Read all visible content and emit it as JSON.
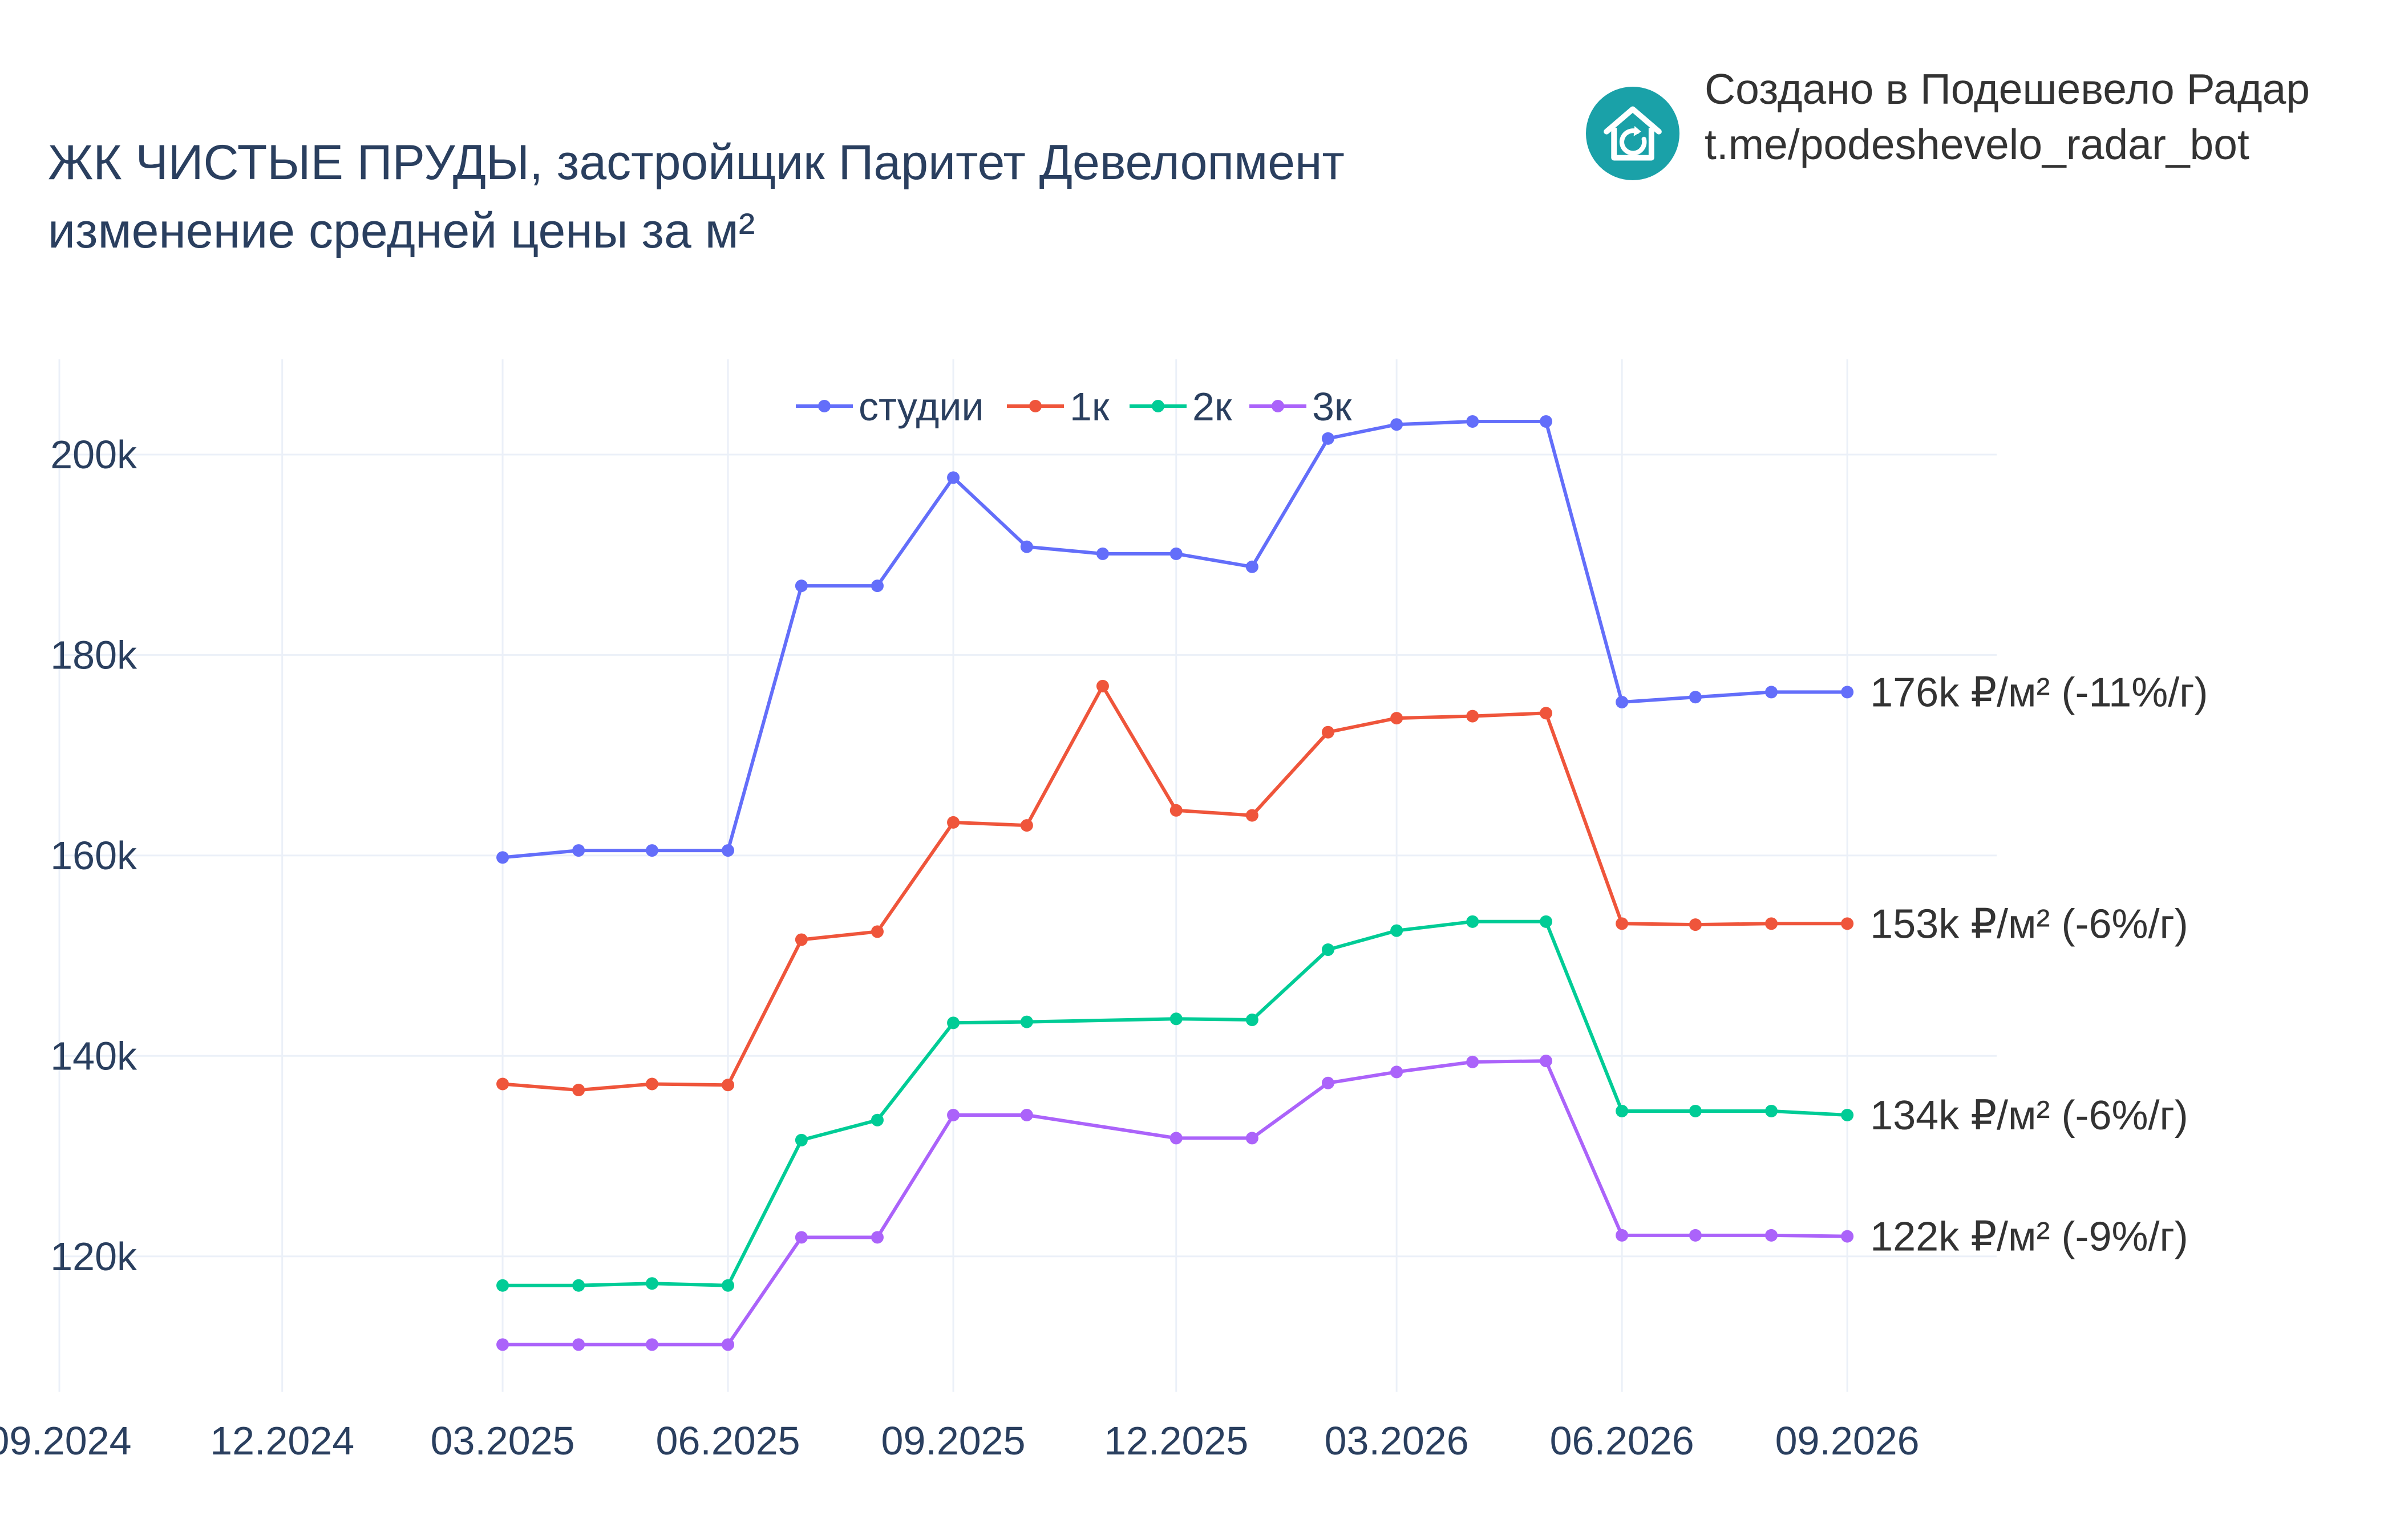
{
  "header": {
    "title_line1": "ЖК ЧИСТЫЕ ПРУДЫ, застройщик Паритет Девелопмент",
    "title_line2": "изменение средней цены за м²"
  },
  "brand": {
    "line1": "Создано в Подешевело Радар",
    "line2": "t.me/podeshevelo_radar_bot",
    "logo_icon": "house-refresh-icon",
    "logo_color": "#1aa1a8"
  },
  "chart_data": {
    "type": "line",
    "x_tick_labels": [
      "09.2024",
      "12.2024",
      "03.2025",
      "06.2025",
      "09.2025",
      "12.2025",
      "03.2026",
      "06.2026",
      "09.2026"
    ],
    "x_tick_dates": [
      "2024-09-01",
      "2024-12-01",
      "2025-03-01",
      "2025-06-01",
      "2025-09-01",
      "2025-12-01",
      "2026-03-01",
      "2026-06-01",
      "2026-09-01"
    ],
    "xlim": [
      "2024-09-01",
      "2026-11-01"
    ],
    "ylim": [
      106500,
      209500
    ],
    "y_ticks": [
      120000,
      140000,
      160000,
      180000,
      200000
    ],
    "y_tick_labels": [
      "120k",
      "140k",
      "160k",
      "180k",
      "200k"
    ],
    "grid": true,
    "legend_placement": "top-center",
    "series": [
      {
        "name": "студии",
        "color": "#636efa",
        "x": [
          "2025-03-01",
          "2025-04-01",
          "2025-05-01",
          "2025-06-01",
          "2025-07-01",
          "2025-08-01",
          "2025-09-01",
          "2025-10-01",
          "2025-11-01",
          "2025-12-01",
          "2026-01-01",
          "2026-02-01",
          "2026-03-01",
          "2026-04-01",
          "2026-05-01",
          "2026-06-01",
          "2026-07-01",
          "2026-08-01",
          "2026-09-01"
        ],
        "values": [
          159800,
          160500,
          160500,
          160500,
          186900,
          186900,
          197700,
          190800,
          190100,
          190100,
          188800,
          201600,
          203000,
          203300,
          203300,
          175300,
          175800,
          176300,
          176300
        ],
        "end_label": "176k ₽/м² (-11%/г)"
      },
      {
        "name": "1к",
        "color": "#ef553b",
        "x": [
          "2025-03-01",
          "2025-04-01",
          "2025-05-01",
          "2025-06-01",
          "2025-07-01",
          "2025-08-01",
          "2025-09-01",
          "2025-10-01",
          "2025-11-01",
          "2025-12-01",
          "2026-01-01",
          "2026-02-01",
          "2026-03-01",
          "2026-04-01",
          "2026-05-01",
          "2026-06-01",
          "2026-07-01",
          "2026-08-01",
          "2026-09-01"
        ],
        "values": [
          137200,
          136600,
          137200,
          137100,
          151600,
          152400,
          163300,
          163000,
          176900,
          164500,
          164000,
          172300,
          173700,
          173900,
          174200,
          153200,
          153100,
          153200,
          153200
        ],
        "end_label": "153k ₽/м² (-6%/г)"
      },
      {
        "name": "2к",
        "color": "#00cc96",
        "x": [
          "2025-03-01",
          "2025-04-01",
          "2025-05-01",
          "2025-06-01",
          "2025-07-01",
          "2025-08-01",
          "2025-09-01",
          "2025-10-01",
          "2025-12-01",
          "2026-01-01",
          "2026-02-01",
          "2026-03-01",
          "2026-04-01",
          "2026-05-01",
          "2026-06-01",
          "2026-07-01",
          "2026-08-01",
          "2026-09-01"
        ],
        "values": [
          117100,
          117100,
          117300,
          117100,
          131600,
          133600,
          143300,
          143400,
          143700,
          143600,
          150600,
          152500,
          153400,
          153400,
          134500,
          134500,
          134500,
          134100
        ],
        "end_label": "134k ₽/м² (-6%/г)"
      },
      {
        "name": "3к",
        "color": "#ab63fa",
        "x": [
          "2025-03-01",
          "2025-04-01",
          "2025-05-01",
          "2025-06-01",
          "2025-07-01",
          "2025-08-01",
          "2025-09-01",
          "2025-10-01",
          "2025-12-01",
          "2026-01-01",
          "2026-02-01",
          "2026-03-01",
          "2026-04-01",
          "2026-05-01",
          "2026-06-01",
          "2026-07-01",
          "2026-08-01",
          "2026-09-01"
        ],
        "values": [
          111200,
          111200,
          111200,
          111200,
          121900,
          121900,
          134100,
          134100,
          131800,
          131800,
          137300,
          138400,
          139400,
          139500,
          122100,
          122100,
          122100,
          122000
        ],
        "end_label": "122k ₽/м² (-9%/г)"
      }
    ]
  }
}
